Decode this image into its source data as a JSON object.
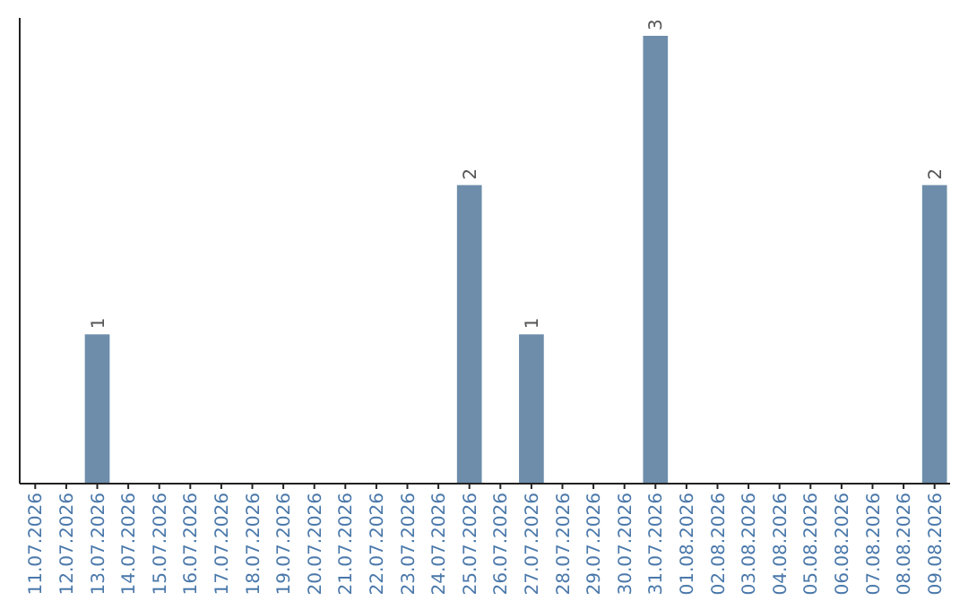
{
  "chart_data": {
    "type": "bar",
    "categories": [
      "11.07.2026",
      "12.07.2026",
      "13.07.2026",
      "14.07.2026",
      "15.07.2026",
      "16.07.2026",
      "17.07.2026",
      "18.07.2026",
      "19.07.2026",
      "20.07.2026",
      "21.07.2026",
      "22.07.2026",
      "23.07.2026",
      "24.07.2026",
      "25.07.2026",
      "26.07.2026",
      "27.07.2026",
      "28.07.2026",
      "29.07.2026",
      "30.07.2026",
      "31.07.2026",
      "01.08.2026",
      "02.08.2026",
      "03.08.2026",
      "04.08.2026",
      "05.08.2026",
      "06.08.2026",
      "07.08.2026",
      "08.08.2026",
      "09.08.2026"
    ],
    "values": [
      0,
      0,
      1,
      0,
      0,
      0,
      0,
      0,
      0,
      0,
      0,
      0,
      0,
      0,
      2,
      0,
      1,
      0,
      0,
      0,
      3,
      0,
      0,
      0,
      0,
      0,
      0,
      0,
      0,
      2
    ],
    "value_labels": [
      null,
      null,
      "1",
      null,
      null,
      null,
      null,
      null,
      null,
      null,
      null,
      null,
      null,
      null,
      "2",
      null,
      "1",
      null,
      null,
      null,
      "3",
      null,
      null,
      null,
      null,
      null,
      null,
      null,
      null,
      "2"
    ],
    "color": "#6d8dab"
  }
}
